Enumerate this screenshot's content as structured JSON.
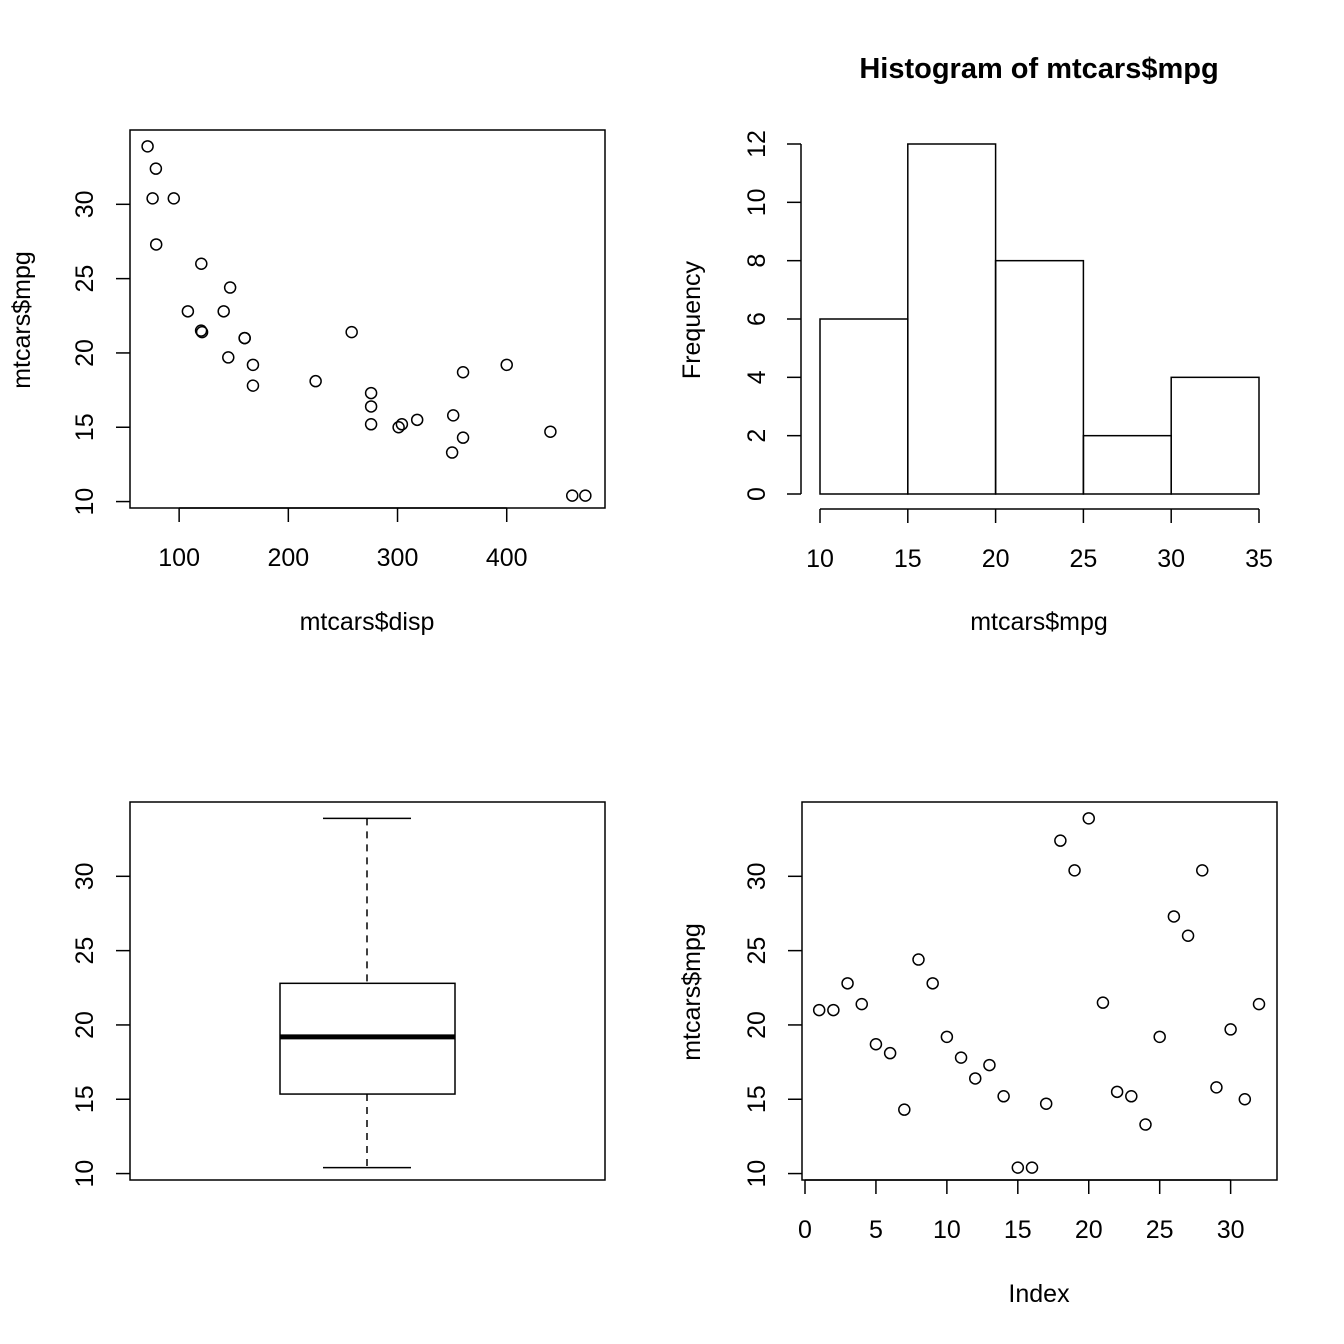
{
  "colors": {
    "foreground": "#000000",
    "background": "#ffffff"
  },
  "chart_data": [
    {
      "type": "scatter",
      "title": "",
      "xlabel": "mtcars$disp",
      "ylabel": "mtcars$mpg",
      "xticks": [
        100,
        200,
        300,
        400
      ],
      "yticks": [
        10,
        15,
        20,
        25,
        30
      ],
      "xlim": [
        55,
        490
      ],
      "ylim": [
        9.5,
        35
      ],
      "points": [
        [
          160,
          21.0
        ],
        [
          160,
          21.0
        ],
        [
          108,
          22.8
        ],
        [
          258,
          21.4
        ],
        [
          360,
          18.7
        ],
        [
          225,
          18.1
        ],
        [
          360,
          14.3
        ],
        [
          146.7,
          24.4
        ],
        [
          140.8,
          22.8
        ],
        [
          167.6,
          19.2
        ],
        [
          167.6,
          17.8
        ],
        [
          275.8,
          16.4
        ],
        [
          275.8,
          17.3
        ],
        [
          275.8,
          15.2
        ],
        [
          472,
          10.4
        ],
        [
          460,
          10.4
        ],
        [
          440,
          14.7
        ],
        [
          78.7,
          32.4
        ],
        [
          75.7,
          30.4
        ],
        [
          71.1,
          33.9
        ],
        [
          120.1,
          21.5
        ],
        [
          318,
          15.5
        ],
        [
          304,
          15.2
        ],
        [
          350,
          13.3
        ],
        [
          400,
          19.2
        ],
        [
          79,
          27.3
        ],
        [
          120.3,
          26.0
        ],
        [
          95.1,
          30.4
        ],
        [
          351,
          15.8
        ],
        [
          145,
          19.7
        ],
        [
          301,
          15.0
        ],
        [
          121,
          21.4
        ]
      ]
    },
    {
      "type": "bar",
      "title": "Histogram of mtcars$mpg",
      "xlabel": "mtcars$mpg",
      "ylabel": "Frequency",
      "xticks": [
        10,
        15,
        20,
        25,
        30,
        35
      ],
      "yticks": [
        0,
        2,
        4,
        6,
        8,
        10,
        12
      ],
      "xlim": [
        9,
        36
      ],
      "ylim": [
        -0.5,
        12.5
      ],
      "bins": [
        [
          10,
          15
        ],
        [
          15,
          20
        ],
        [
          20,
          25
        ],
        [
          25,
          30
        ],
        [
          30,
          35
        ]
      ],
      "values": [
        6,
        12,
        8,
        2,
        4
      ]
    },
    {
      "type": "boxplot",
      "title": "",
      "xlabel": "",
      "ylabel": "",
      "yticks": [
        10,
        15,
        20,
        25,
        30
      ],
      "ylim": [
        9.5,
        35
      ],
      "whisker_low": 10.4,
      "q1": 15.35,
      "median": 19.2,
      "q3": 22.8,
      "whisker_high": 33.9
    },
    {
      "type": "scatter",
      "title": "",
      "xlabel": "Index",
      "ylabel": "mtcars$mpg",
      "xticks": [
        0,
        5,
        10,
        15,
        20,
        25,
        30
      ],
      "yticks": [
        10,
        15,
        20,
        25,
        30
      ],
      "xlim": [
        -0.2,
        33
      ],
      "ylim": [
        9.5,
        35
      ],
      "x": [
        1,
        2,
        3,
        4,
        5,
        6,
        7,
        8,
        9,
        10,
        11,
        12,
        13,
        14,
        15,
        16,
        17,
        18,
        19,
        20,
        21,
        22,
        23,
        24,
        25,
        26,
        27,
        28,
        29,
        30,
        31,
        32
      ],
      "y": [
        21.0,
        21.0,
        22.8,
        21.4,
        18.7,
        18.1,
        14.3,
        24.4,
        22.8,
        19.2,
        17.8,
        16.4,
        17.3,
        15.2,
        10.4,
        10.4,
        14.7,
        32.4,
        30.4,
        33.9,
        21.5,
        15.5,
        15.2,
        13.3,
        19.2,
        27.3,
        26.0,
        30.4,
        15.8,
        19.7,
        15.0,
        21.4
      ]
    }
  ]
}
